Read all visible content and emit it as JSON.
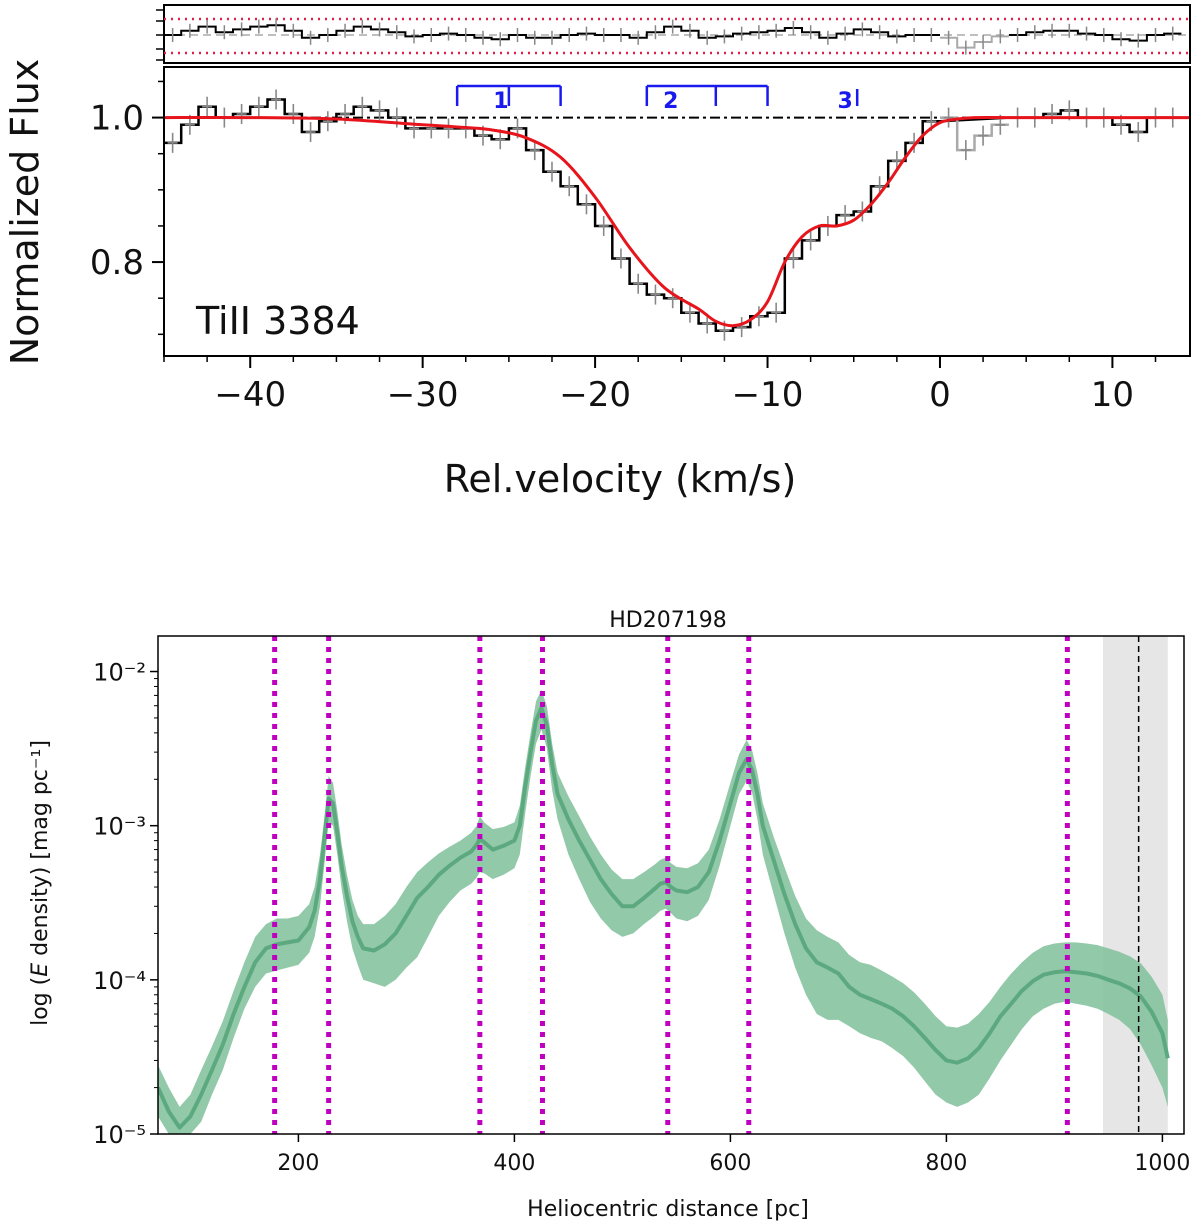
{
  "chart_data": [
    {
      "type": "line",
      "name": "top-spectrum-panel",
      "ylabel": "Normalized Flux",
      "xlabel": "Rel.velocity (km/s)",
      "annotation": "TiII 3384",
      "xlim": [
        -45,
        14.5
      ],
      "ylim": [
        0.67,
        1.07
      ],
      "xticks": [
        -40,
        -30,
        -20,
        -10,
        0,
        10
      ],
      "xtick_labels": [
        "−40",
        "−30",
        "−20",
        "−10",
        "0",
        "10"
      ],
      "yticks": [
        0.8,
        1.0
      ],
      "ytick_labels": [
        "0.8",
        "1.0"
      ],
      "continuum_level": 1.0,
      "observed_flux": {
        "x": [
          -44.5,
          -43.5,
          -42.5,
          -41.5,
          -40.5,
          -39.5,
          -38.5,
          -37.5,
          -36.5,
          -35.5,
          -34.5,
          -33.5,
          -32.5,
          -31.5,
          -30.5,
          -29.5,
          -28.5,
          -27.5,
          -26.5,
          -25.5,
          -24.5,
          -23.5,
          -22.5,
          -21.5,
          -20.5,
          -19.5,
          -18.5,
          -17.5,
          -16.5,
          -15.5,
          -14.5,
          -13.5,
          -12.5,
          -11.5,
          -10.5,
          -9.5,
          -8.5,
          -7.5,
          -6.5,
          -5.5,
          -4.5,
          -3.5,
          -2.5,
          -1.5,
          -0.5,
          0.5,
          1.5,
          2.5,
          3.5,
          4.5,
          5.5,
          6.5,
          7.5,
          8.5,
          9.5,
          10.5,
          11.5,
          12.5,
          13.5
        ],
        "y": [
          0.965,
          0.99,
          1.015,
          1.0,
          1.005,
          1.015,
          1.025,
          1.005,
          0.98,
          0.995,
          1.005,
          1.015,
          1.01,
          1.0,
          0.985,
          0.985,
          0.985,
          0.985,
          0.975,
          0.97,
          0.985,
          0.955,
          0.925,
          0.905,
          0.88,
          0.85,
          0.805,
          0.77,
          0.755,
          0.75,
          0.73,
          0.715,
          0.705,
          0.71,
          0.725,
          0.73,
          0.805,
          0.83,
          0.85,
          0.865,
          0.87,
          0.905,
          0.94,
          0.965,
          0.995,
          1.0,
          0.955,
          0.975,
          0.99,
          1.0,
          1.0,
          1.005,
          1.01,
          1.0,
          1.0,
          0.99,
          0.98,
          1.0,
          1.0
        ]
      },
      "masked_range": [
        0.0,
        4.0
      ],
      "model_fit": {
        "x": [
          -45,
          -40,
          -35,
          -30,
          -28,
          -26,
          -24,
          -22,
          -20,
          -18,
          -16,
          -14,
          -13,
          -12,
          -11,
          -10,
          -9,
          -8,
          -7,
          -6,
          -5,
          -4,
          -3,
          -2,
          -1,
          0,
          1,
          2,
          4,
          6,
          8,
          10,
          14.5
        ],
        "y": [
          1.0,
          1.0,
          0.998,
          0.99,
          0.987,
          0.983,
          0.972,
          0.945,
          0.89,
          0.82,
          0.765,
          0.735,
          0.718,
          0.712,
          0.72,
          0.745,
          0.8,
          0.835,
          0.85,
          0.85,
          0.858,
          0.88,
          0.91,
          0.945,
          0.975,
          0.993,
          0.998,
          1.0,
          1.0,
          1.0,
          1.0,
          1.0,
          1.0
        ]
      },
      "residual_panel": {
        "note": "upper residual strip with dotted limits",
        "values": [
          0.0,
          0.3,
          0.6,
          0.2,
          0.4,
          0.6,
          0.7,
          0.3,
          -0.2,
          0.0,
          0.3,
          0.6,
          0.4,
          0.2,
          -0.1,
          0.0,
          0.1,
          0.0,
          -0.2,
          -0.3,
          0.0,
          -0.2,
          -0.2,
          0.0,
          0.1,
          0.0,
          0.0,
          -0.2,
          0.2,
          0.6,
          0.3,
          -0.2,
          -0.1,
          0.1,
          0.2,
          0.3,
          0.5,
          0.2,
          -0.2,
          0.1,
          0.4,
          0.2,
          -0.1,
          0.0,
          0.0,
          -0.2,
          -0.9,
          -0.5,
          -0.1,
          0.0,
          0.2,
          0.3,
          0.3,
          0.1,
          0.0,
          -0.3,
          -0.4,
          0.0,
          0.1
        ]
      },
      "components": [
        {
          "label": "1",
          "ticks": [
            -28,
            -25,
            -22
          ]
        },
        {
          "label": "2",
          "ticks": [
            -17,
            -13,
            -10
          ]
        },
        {
          "label": "3",
          "ticks": [
            -4.8
          ]
        }
      ]
    },
    {
      "type": "area",
      "name": "bottom-extinction-panel",
      "title": "HD207198",
      "xlabel": "Heliocentric distance [pc]",
      "ylabel": "log (E density) [mag pc⁻¹]",
      "yscale": "log",
      "xlim": [
        70,
        1020
      ],
      "ylim": [
        1e-05,
        0.017
      ],
      "xticks": [
        200,
        400,
        600,
        800,
        1000
      ],
      "xtick_labels": [
        "200",
        "400",
        "600",
        "800",
        "1000"
      ],
      "yticks": [
        1e-05,
        0.0001,
        0.001,
        0.01
      ],
      "ytick_labels": [
        "10⁻⁵",
        "10⁻⁴",
        "10⁻³",
        "10⁻²"
      ],
      "series": [
        {
          "x": [
            70,
            80,
            90,
            100,
            110,
            120,
            130,
            140,
            150,
            160,
            170,
            180,
            190,
            200,
            210,
            215,
            220,
            225,
            228,
            232,
            236,
            240,
            245,
            250,
            255,
            260,
            270,
            280,
            290,
            300,
            310,
            320,
            330,
            340,
            350,
            360,
            365,
            368,
            372,
            380,
            390,
            400,
            405,
            410,
            415,
            420,
            425,
            430,
            435,
            440,
            450,
            460,
            470,
            480,
            490,
            500,
            510,
            520,
            530,
            535,
            540,
            545,
            550,
            560,
            570,
            580,
            590,
            600,
            608,
            615,
            620,
            625,
            630,
            640,
            650,
            660,
            670,
            680,
            690,
            700,
            710,
            720,
            730,
            740,
            750,
            760,
            770,
            780,
            790,
            800,
            810,
            820,
            830,
            840,
            850,
            860,
            870,
            880,
            890,
            900,
            910,
            920,
            930,
            940,
            950,
            960,
            970,
            980,
            990,
            1000,
            1005
          ],
          "median": [
            2e-05,
            1.4e-05,
            1.1e-05,
            1.3e-05,
            1.8e-05,
            2.6e-05,
            3.8e-05,
            6e-05,
            9e-05,
            0.00013,
            0.00016,
            0.00017,
            0.000175,
            0.00018,
            0.00022,
            0.00028,
            0.00045,
            0.00095,
            0.0015,
            0.0014,
            0.0009,
            0.00055,
            0.00035,
            0.00024,
            0.00019,
            0.00016,
            0.000155,
            0.00017,
            0.0002,
            0.00026,
            0.00034,
            0.0004,
            0.00048,
            0.00055,
            0.00062,
            0.00068,
            0.00075,
            0.00082,
            0.00078,
            0.0007,
            0.00074,
            0.0008,
            0.001,
            0.0018,
            0.003,
            0.0048,
            0.0058,
            0.0045,
            0.0025,
            0.0016,
            0.0011,
            0.0008,
            0.0006,
            0.00045,
            0.00036,
            0.0003,
            0.0003,
            0.00034,
            0.00039,
            0.00042,
            0.00043,
            0.0004,
            0.00038,
            0.00037,
            0.0004,
            0.0005,
            0.0008,
            0.0014,
            0.0022,
            0.0027,
            0.0023,
            0.0016,
            0.001,
            0.0006,
            0.00036,
            0.00023,
            0.00016,
            0.00013,
            0.00012,
            0.00011,
            9e-05,
            8e-05,
            7.5e-05,
            7e-05,
            6.5e-05,
            5.8e-05,
            5e-05,
            4.2e-05,
            3.5e-05,
            3e-05,
            2.9e-05,
            3.1e-05,
            3.6e-05,
            4.5e-05,
            5.8e-05,
            7e-05,
            8.5e-05,
            9.8e-05,
            0.000108,
            0.000112,
            0.000114,
            0.000112,
            0.00011,
            0.000106,
            0.0001,
            9.5e-05,
            8.8e-05,
            7.8e-05,
            6.2e-05,
            4.5e-05,
            3.1e-05
          ],
          "lower": [
            1.3e-05,
            1e-05,
            1e-05,
            1e-05,
            1.2e-05,
            1.8e-05,
            2.6e-05,
            4.2e-05,
            6.5e-05,
            9e-05,
            0.00011,
            0.000115,
            0.00012,
            0.000125,
            0.00015,
            0.00019,
            0.0003,
            0.00065,
            0.00105,
            0.001,
            0.00065,
            0.00039,
            0.00024,
            0.00016,
            0.000125,
            0.0001,
            9.5e-05,
            9e-05,
            0.0001,
            0.00012,
            0.00014,
            0.00019,
            0.00026,
            0.00032,
            0.00038,
            0.00042,
            0.00046,
            0.0005,
            0.00049,
            0.00045,
            0.00048,
            0.00053,
            0.00065,
            0.0012,
            0.0021,
            0.0034,
            0.0042,
            0.0032,
            0.0017,
            0.0011,
            0.00065,
            0.00045,
            0.00032,
            0.00025,
            0.00021,
            0.00019,
            0.0002,
            0.00023,
            0.00026,
            0.00028,
            0.00029,
            0.00027,
            0.00025,
            0.00024,
            0.00026,
            0.00033,
            0.00055,
            0.001,
            0.0016,
            0.00195,
            0.00165,
            0.0011,
            0.00065,
            0.00036,
            0.0002,
            0.00012,
            8e-05,
            6e-05,
            5.5e-05,
            5.5e-05,
            5e-05,
            4.5e-05,
            4.2e-05,
            4e-05,
            3.6e-05,
            3.2e-05,
            2.7e-05,
            2.2e-05,
            1.8e-05,
            1.6e-05,
            1.5e-05,
            1.6e-05,
            1.8e-05,
            2.3e-05,
            3e-05,
            3.8e-05,
            4.8e-05,
            5.8e-05,
            6.5e-05,
            7e-05,
            7.2e-05,
            7e-05,
            6.8e-05,
            6.5e-05,
            6e-05,
            5.5e-05,
            4.8e-05,
            3.8e-05,
            2.8e-05,
            2e-05,
            1.5e-05
          ],
          "upper": [
            2.8e-05,
            2e-05,
            1.5e-05,
            1.8e-05,
            2.6e-05,
            3.7e-05,
            5.4e-05,
            8.5e-05,
            0.00013,
            0.00019,
            0.00023,
            0.00025,
            0.00025,
            0.00026,
            0.00031,
            0.0004,
            0.00065,
            0.0013,
            0.0021,
            0.0019,
            0.00125,
            0.00076,
            0.00048,
            0.00033,
            0.00026,
            0.00023,
            0.00023,
            0.00026,
            0.00031,
            0.0004,
            0.0005,
            0.00058,
            0.00066,
            0.00073,
            0.0008,
            0.0009,
            0.001,
            0.00115,
            0.00105,
            0.00095,
            0.00098,
            0.00105,
            0.00135,
            0.0024,
            0.004,
            0.0064,
            0.0076,
            0.006,
            0.0034,
            0.0022,
            0.00155,
            0.00115,
            0.00085,
            0.00065,
            0.00052,
            0.00045,
            0.00045,
            0.0005,
            0.00056,
            0.0006,
            0.00062,
            0.00057,
            0.00054,
            0.00053,
            0.00057,
            0.0007,
            0.0011,
            0.0019,
            0.0029,
            0.0036,
            0.0031,
            0.0022,
            0.0014,
            0.00085,
            0.00054,
            0.00035,
            0.00025,
            0.00021,
            0.00019,
            0.000175,
            0.000145,
            0.00013,
            0.000125,
            0.000115,
            0.000105,
            9.5e-05,
            8.3e-05,
            7e-05,
            5.8e-05,
            5e-05,
            4.9e-05,
            5.2e-05,
            6e-05,
            7.2e-05,
            9e-05,
            0.00011,
            0.00013,
            0.00015,
            0.000165,
            0.000172,
            0.000175,
            0.000175,
            0.000172,
            0.000168,
            0.00016,
            0.000152,
            0.000142,
            0.000128,
            0.000105,
            8e-05,
            5.5e-05
          ]
        }
      ],
      "vertical_lines": [
        178,
        228,
        368,
        426,
        542,
        617,
        912
      ],
      "shaded_range": [
        945,
        1005
      ],
      "dashed_line": 978,
      "colors": {
        "band": "#7fbf9a",
        "line": "#5da97f",
        "vlines": "#c000c0",
        "shade": "#e6e6e6"
      }
    }
  ]
}
